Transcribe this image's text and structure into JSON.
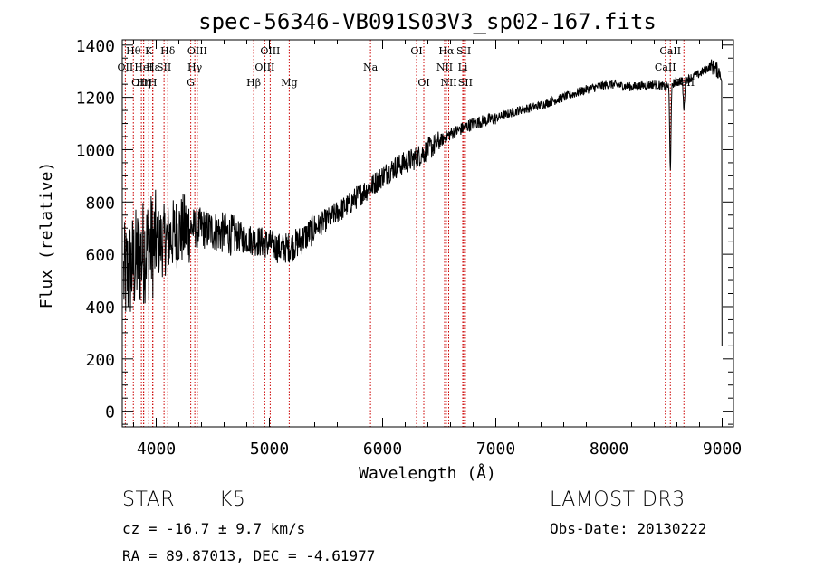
{
  "chart_data": {
    "type": "line",
    "title": "spec-56346-VB091S03V3_sp02-167.fits",
    "xlabel": "Wavelength (Å)",
    "ylabel": "Flux (relative)",
    "xlim": [
      3700,
      9100
    ],
    "ylim": [
      -60,
      1420
    ],
    "xticks": [
      4000,
      5000,
      6000,
      7000,
      8000,
      9000
    ],
    "yticks": [
      0,
      200,
      400,
      600,
      800,
      1000,
      1200,
      1400
    ],
    "spectrum_anchors": {
      "wavelength": [
        3700,
        3800,
        3900,
        4000,
        4100,
        4200,
        4300,
        4400,
        4500,
        4600,
        4700,
        4800,
        4900,
        5000,
        5100,
        5200,
        5300,
        5400,
        5500,
        5600,
        5700,
        5800,
        5900,
        6000,
        6100,
        6200,
        6300,
        6400,
        6500,
        6600,
        6700,
        6800,
        6900,
        7000,
        7200,
        7400,
        7600,
        7800,
        8000,
        8200,
        8400,
        8500,
        8600,
        8700,
        8800,
        8900,
        9000
      ],
      "flux": [
        500,
        560,
        620,
        640,
        660,
        690,
        700,
        700,
        690,
        680,
        670,
        660,
        650,
        640,
        620,
        630,
        660,
        700,
        730,
        760,
        790,
        830,
        860,
        900,
        930,
        950,
        970,
        1000,
        1030,
        1060,
        1080,
        1100,
        1110,
        1120,
        1150,
        1170,
        1200,
        1230,
        1250,
        1240,
        1250,
        1240,
        1260,
        1270,
        1290,
        1320,
        1290
      ]
    },
    "absorption_dips": [
      {
        "wavelength": 8542,
        "flux": 930
      },
      {
        "wavelength": 8662,
        "flux": 1150
      }
    ],
    "lines": [
      {
        "label": "Hθ",
        "wavelength": 3798,
        "row": 0
      },
      {
        "label": "OII",
        "wavelength": 3727,
        "row": 1
      },
      {
        "label": "OIII",
        "wavelength": 3869,
        "row": 2
      },
      {
        "label": "K",
        "wavelength": 3934,
        "row": 0
      },
      {
        "label": "Hε",
        "wavelength": 3970,
        "row": 1
      },
      {
        "label": "Hη",
        "wavelength": 3889,
        "row": 2
      },
      {
        "label": "HeI",
        "wavelength": 3889,
        "row": 1
      },
      {
        "label": "SII",
        "wavelength": 4069,
        "row": 1
      },
      {
        "label": "H",
        "wavelength": 3969,
        "row": 2
      },
      {
        "label": "Hδ",
        "wavelength": 4102,
        "row": 0
      },
      {
        "label": "OIII",
        "wavelength": 4363,
        "row": 0
      },
      {
        "label": "Hγ",
        "wavelength": 4341,
        "row": 1
      },
      {
        "label": "G",
        "wavelength": 4305,
        "row": 2
      },
      {
        "label": "OIII",
        "wavelength": 5007,
        "row": 0
      },
      {
        "label": "OIII",
        "wavelength": 4959,
        "row": 1
      },
      {
        "label": "Hβ",
        "wavelength": 4861,
        "row": 2
      },
      {
        "label": "Mg",
        "wavelength": 5175,
        "row": 2
      },
      {
        "label": "Na",
        "wavelength": 5893,
        "row": 1
      },
      {
        "label": "OI",
        "wavelength": 6300,
        "row": 0
      },
      {
        "label": "OI",
        "wavelength": 6364,
        "row": 2
      },
      {
        "label": "Hα",
        "wavelength": 6563,
        "row": 0
      },
      {
        "label": "NII",
        "wavelength": 6548,
        "row": 1
      },
      {
        "label": "NII",
        "wavelength": 6584,
        "row": 2
      },
      {
        "label": "SII",
        "wavelength": 6717,
        "row": 0
      },
      {
        "label": "Li",
        "wavelength": 6708,
        "row": 1
      },
      {
        "label": "SII",
        "wavelength": 6731,
        "row": 2
      },
      {
        "label": "CaII",
        "wavelength": 8542,
        "row": 0
      },
      {
        "label": "CaII",
        "wavelength": 8498,
        "row": 1
      },
      {
        "label": "CaII",
        "wavelength": 8662,
        "row": 2
      }
    ]
  },
  "info": {
    "class": "STAR",
    "subclass": "K5",
    "survey": "LAMOST DR3",
    "redshift": "cz = -16.7 ± 9.7 km/s",
    "obs_date": "Obs-Date: 20130222",
    "coords": "RA =  89.87013, DEC =  -4.61977"
  },
  "colors": {
    "axis": "#000000",
    "spectrum": "#000000",
    "line_marker": "#cc0000"
  }
}
